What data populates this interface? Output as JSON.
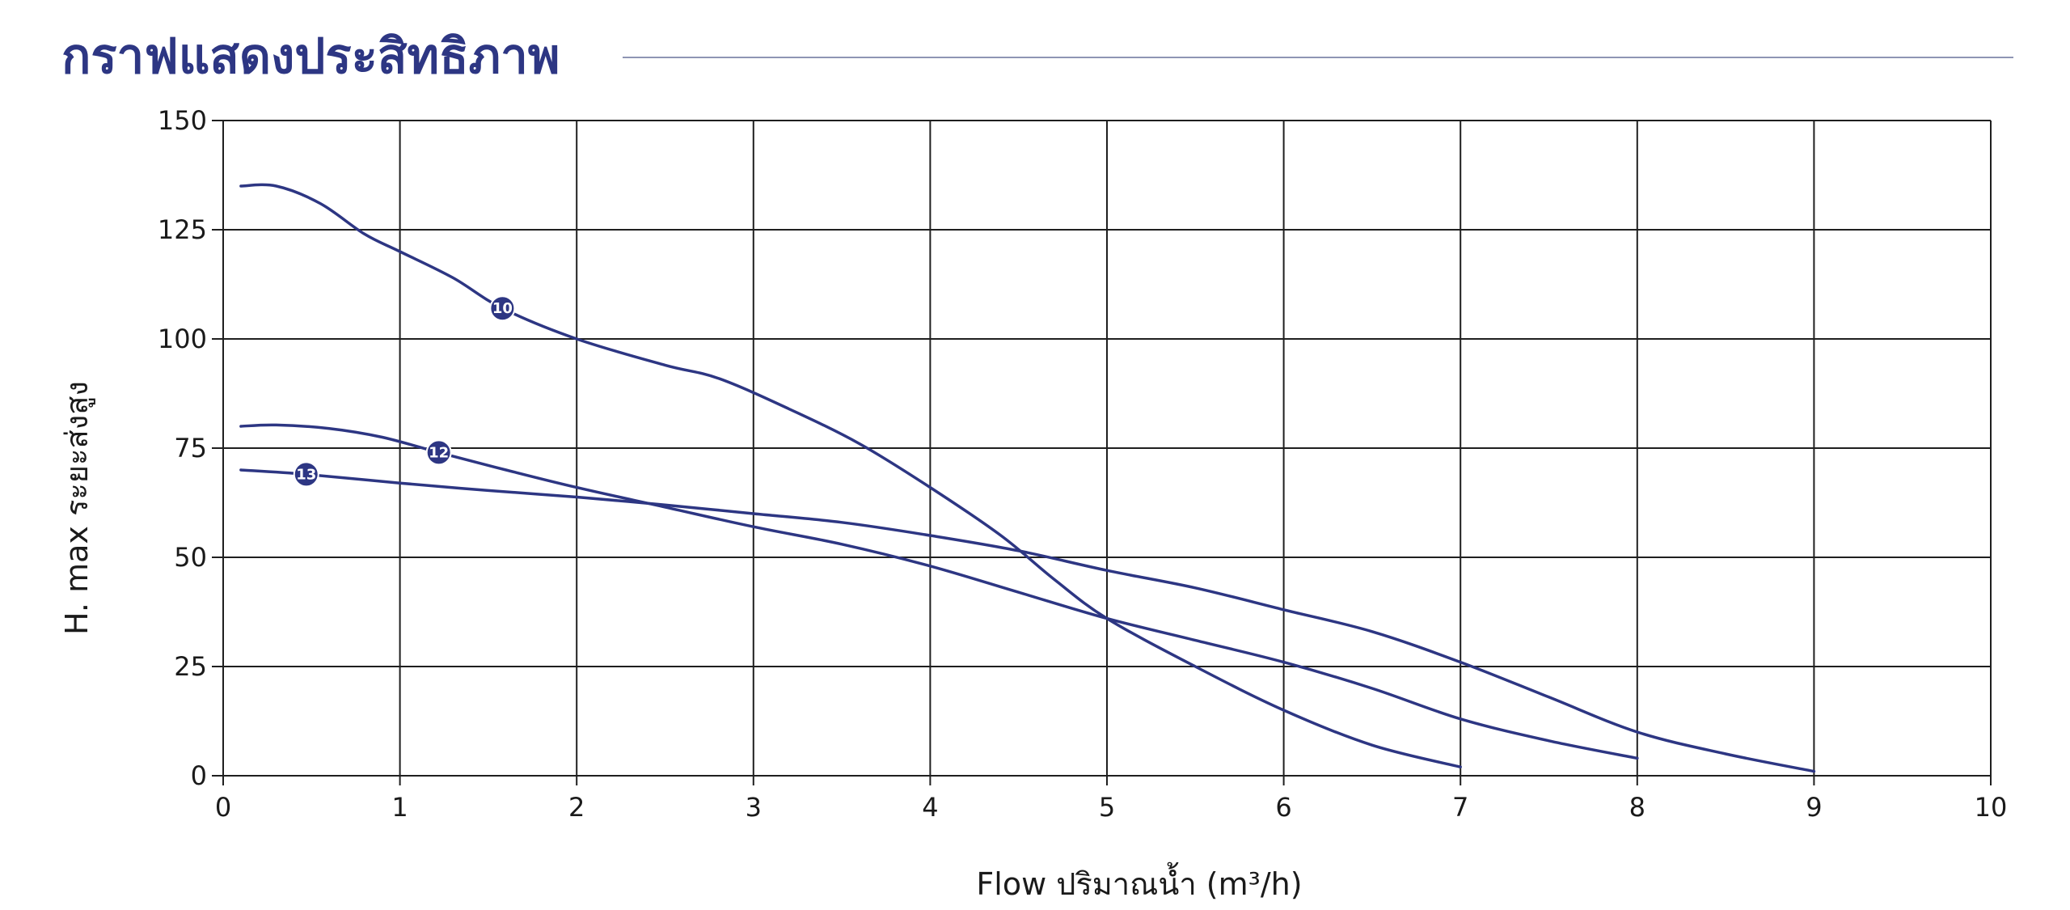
{
  "chart_data": {
    "type": "line",
    "title": "กราฟแสดงประสิทธิภาพ",
    "xlabel": "Flow ปริมาณน้ำ (m³/h)",
    "ylabel": "H. max ระยะส่งสูง",
    "xlim": [
      0,
      10
    ],
    "ylim": [
      0,
      150
    ],
    "xticks": [
      0,
      1,
      2,
      3,
      4,
      5,
      6,
      7,
      8,
      9,
      10
    ],
    "yticks": [
      0,
      25,
      50,
      75,
      100,
      125,
      150
    ],
    "grid": true,
    "line_color": "#2d3683",
    "series": [
      {
        "label": "10",
        "label_at": [
          1.58,
          107
        ],
        "points": [
          [
            0.1,
            135
          ],
          [
            0.3,
            135
          ],
          [
            0.55,
            131
          ],
          [
            0.8,
            124
          ],
          [
            1.0,
            120
          ],
          [
            1.3,
            114
          ],
          [
            1.58,
            107
          ],
          [
            2.0,
            100
          ],
          [
            2.5,
            94
          ],
          [
            2.8,
            91
          ],
          [
            3.2,
            84
          ],
          [
            3.6,
            76
          ],
          [
            4.0,
            66
          ],
          [
            4.4,
            55
          ],
          [
            4.7,
            45
          ],
          [
            5.0,
            36
          ],
          [
            5.5,
            25
          ],
          [
            6.0,
            15
          ],
          [
            6.5,
            7
          ],
          [
            7.0,
            2
          ]
        ]
      },
      {
        "label": "12",
        "label_at": [
          1.22,
          74
        ],
        "points": [
          [
            0.1,
            80
          ],
          [
            0.3,
            80.3
          ],
          [
            0.6,
            79.5
          ],
          [
            0.9,
            77.5
          ],
          [
            1.22,
            74
          ],
          [
            1.6,
            70
          ],
          [
            2.0,
            66
          ],
          [
            2.5,
            61.5
          ],
          [
            3.0,
            57
          ],
          [
            3.5,
            53
          ],
          [
            4.0,
            48
          ],
          [
            4.5,
            42
          ],
          [
            5.0,
            36
          ],
          [
            5.5,
            31
          ],
          [
            6.0,
            26
          ],
          [
            6.5,
            20
          ],
          [
            7.0,
            13
          ],
          [
            7.5,
            8
          ],
          [
            8.0,
            4
          ]
        ]
      },
      {
        "label": "13",
        "label_at": [
          0.47,
          69
        ],
        "points": [
          [
            0.1,
            70
          ],
          [
            0.47,
            69
          ],
          [
            1.0,
            67
          ],
          [
            1.5,
            65.3
          ],
          [
            2.0,
            63.8
          ],
          [
            2.5,
            62
          ],
          [
            3.0,
            60
          ],
          [
            3.5,
            58
          ],
          [
            4.0,
            55
          ],
          [
            4.5,
            51.5
          ],
          [
            5.0,
            47
          ],
          [
            5.5,
            43
          ],
          [
            6.0,
            38
          ],
          [
            6.5,
            33
          ],
          [
            7.0,
            26
          ],
          [
            7.5,
            18
          ],
          [
            8.0,
            10
          ],
          [
            8.5,
            5
          ],
          [
            9.0,
            1
          ]
        ]
      }
    ]
  }
}
